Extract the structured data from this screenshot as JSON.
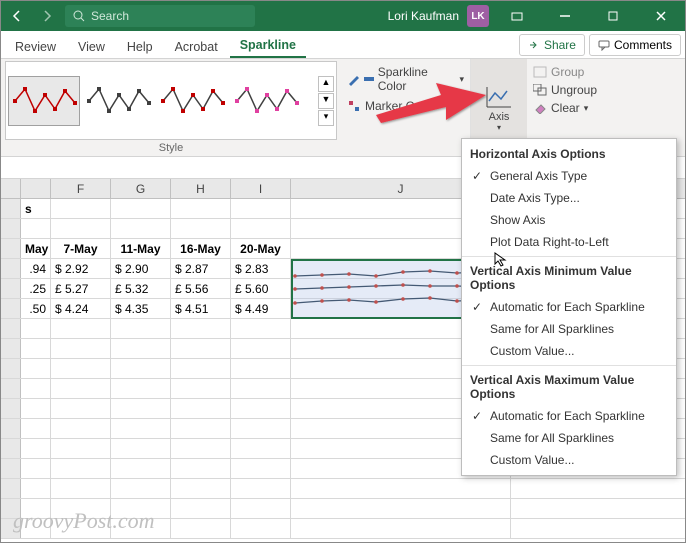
{
  "titlebar": {
    "search_placeholder": "Search",
    "username": "Lori Kaufman",
    "initials": "LK"
  },
  "tabs": {
    "t1": "Review",
    "t2": "View",
    "t3": "Help",
    "t4": "Acrobat",
    "t5": "Sparkline"
  },
  "actions": {
    "share": "Share",
    "comments": "Comments"
  },
  "ribbon": {
    "style_label": "Style",
    "sparkline_color": "Sparkline Color",
    "marker_color": "Marker Color",
    "axis": "Axis",
    "group": "Group",
    "ungroup": "Ungroup",
    "clear": "Clear",
    "thumb_colors": {
      "c1": "#c00000",
      "c2": "#3f3f3f",
      "c3": "#404040",
      "c4": "#e040a0"
    },
    "color_swatch1": "#3a6fb0",
    "color_swatch2": "#c04060"
  },
  "columns": {
    "f": "F",
    "g": "G",
    "h": "H",
    "i": "I",
    "j": "J"
  },
  "headers": {
    "e": "May",
    "f": "7-May",
    "g": "11-May",
    "h": "16-May",
    "i": "20-May"
  },
  "data": {
    "r1": {
      "e": ".94",
      "f": "$    2.92",
      "g": "$    2.90",
      "h": "$    2.87",
      "i": "$    2.83"
    },
    "r2": {
      "e": ".25",
      "f": "£    5.27",
      "g": "£    5.32",
      "h": "£    5.56",
      "i": "£    5.60"
    },
    "r3": {
      "e": ".50",
      "f": "$    4.24",
      "g": "$    4.35",
      "h": "$    4.51",
      "i": "$    4.49"
    }
  },
  "sparklines": {
    "color": "#455a74",
    "marker": "#c0504d",
    "s1": [
      15,
      14,
      13,
      15,
      11,
      10,
      12,
      11,
      10
    ],
    "s2": [
      28,
      27,
      26,
      25,
      24,
      25,
      25,
      26,
      26
    ],
    "s3": [
      42,
      40,
      39,
      41,
      38,
      37,
      40,
      39,
      38
    ]
  },
  "dropdown": {
    "h1": "Horizontal Axis Options",
    "i1": "General Axis Type",
    "i2": "Date Axis Type...",
    "i3": "Show Axis",
    "i4": "Plot Data Right-to-Left",
    "h2": "Vertical Axis Minimum Value Options",
    "i5": "Automatic for Each Sparkline",
    "i6": "Same for All Sparklines",
    "i7": "Custom Value...",
    "h3": "Vertical Axis Maximum Value Options",
    "i8": "Automatic for Each Sparkline",
    "i9": "Same for All Sparklines",
    "i10": "Custom Value..."
  },
  "watermark": "groovyPost.com"
}
